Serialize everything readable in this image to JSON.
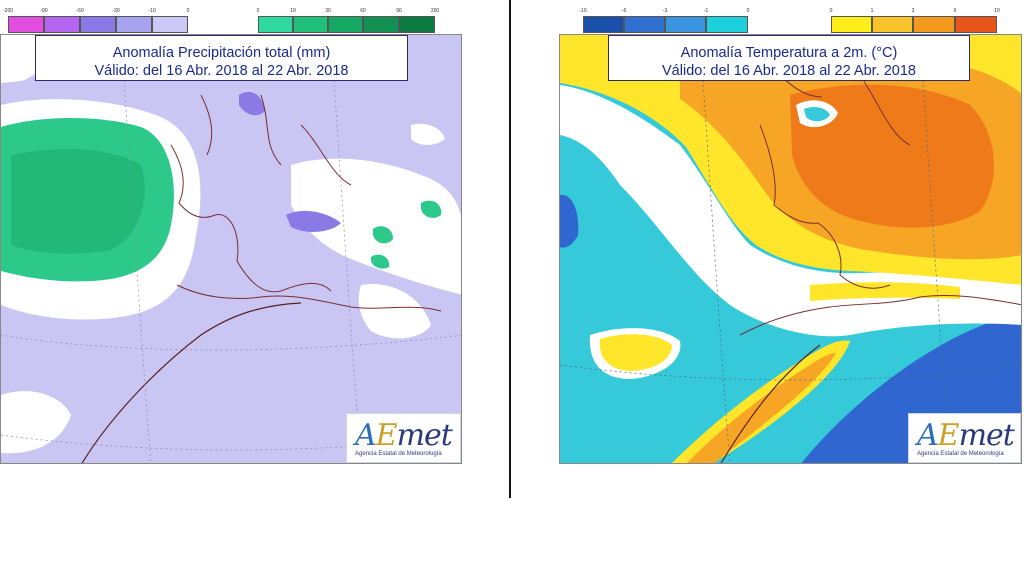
{
  "precipitation": {
    "title_line1": "Anomalía Precipitación total (mm)",
    "title_line2": "Válido: del 16 Abr. 2018 al 22 Abr. 2018",
    "legend_negative": {
      "ticks": [
        "-200",
        "-90",
        "-60",
        "-30",
        "-10",
        "0"
      ],
      "colors": [
        "#e24fe0",
        "#b466f0",
        "#8b7ae6",
        "#a7a3ee",
        "#cac8f6"
      ]
    },
    "legend_positive": {
      "ticks": [
        "0",
        "10",
        "30",
        "60",
        "90",
        "200"
      ],
      "colors": [
        "#2ed89f",
        "#20c07a",
        "#18a866",
        "#128f52",
        "#0d7a44"
      ]
    }
  },
  "temperature": {
    "title_line1": "Anomalía Temperatura a 2m. (°C)",
    "title_line2": "Válido: del 16 Abr. 2018 al 22 Abr. 2018",
    "legend_negative": {
      "ticks": [
        "-10",
        "-6",
        "-3",
        "-1",
        "0"
      ],
      "colors": [
        "#1a4fa8",
        "#2e6fd0",
        "#3a94e0",
        "#1ed0dc"
      ]
    },
    "legend_positive": {
      "ticks": [
        "0",
        "1",
        "3",
        "6",
        "10"
      ],
      "colors": [
        "#ffee1a",
        "#f8c32a",
        "#f39a1e",
        "#e8551a"
      ]
    }
  },
  "logo": {
    "wordmark_a": "A",
    "wordmark_e": "E",
    "wordmark_rest": "met",
    "subtitle": "Agencia Estatal de Meteorología"
  },
  "colors": {
    "precip_base": "#c9c6f3",
    "precip_green": "#2cc98a",
    "precip_deep_green": "#22b878",
    "temp_cyan": "#36c9da",
    "temp_blue": "#2f66cf",
    "temp_yellow": "#ffe62a",
    "temp_orange": "#f6a624",
    "temp_dark_orange": "#ee7a1a",
    "border_line": "#7a2f2f"
  }
}
